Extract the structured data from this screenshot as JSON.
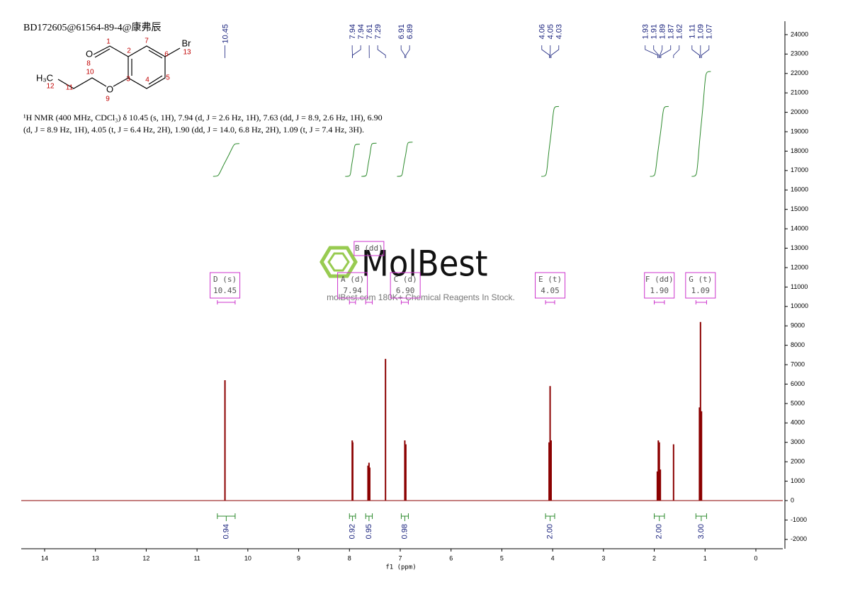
{
  "chart_data": {
    "type": "nmr",
    "header": "BD172605@61564-89-4@康弗辰",
    "description": [
      "¹H NMR (400 MHz, CDCl₃) δ 10.45 (s, 1H), 7.94 (d, J = 2.6 Hz, 1H), 7.63 (dd, J = 8.9, 2.6 Hz, 1H), 6.90",
      "(d, J = 8.9 Hz, 1H), 4.05 (t, J = 6.4 Hz, 2H), 1.90 (dd, J = 14.0, 6.8 Hz, 2H), 1.09 (t, J = 7.4 Hz, 3H)."
    ],
    "structure": {
      "atoms": [
        "O",
        "O",
        "Br",
        "H₃C"
      ],
      "numbers": [
        1,
        2,
        3,
        4,
        5,
        6,
        7,
        8,
        9,
        10,
        11,
        12,
        13
      ]
    },
    "watermark": {
      "title": "MolBest",
      "subtitle": "molBest.com 180K+ Chemical Reagents In Stock."
    },
    "x_label": "f1 (ppm)",
    "xlim": [
      14.46,
      -0.53
    ],
    "xticks": [
      14,
      13,
      12,
      11,
      10,
      9,
      8,
      7,
      6,
      5,
      4,
      3,
      2,
      1,
      0
    ],
    "ylim": [
      -2480,
      24690
    ],
    "yticks": [
      -2000,
      -1000,
      0,
      1000,
      2000,
      3000,
      4000,
      5000,
      6000,
      7000,
      8000,
      9000,
      10000,
      11000,
      12000,
      13000,
      14000,
      15000,
      16000,
      17000,
      18000,
      19000,
      20000,
      21000,
      22000,
      23000,
      24000
    ],
    "color": "#8b0000",
    "x": [
      10.45,
      7.945,
      7.935,
      7.635,
      7.615,
      7.6,
      7.29,
      6.91,
      6.89,
      4.07,
      4.05,
      4.03,
      1.94,
      1.92,
      1.9,
      1.88,
      1.62,
      1.11,
      1.09,
      1.07
    ],
    "values": [
      6200,
      3100,
      3000,
      1800,
      1950,
      1700,
      7300,
      3100,
      2900,
      3000,
      5900,
      3100,
      1500,
      3100,
      3000,
      1600,
      2900,
      4800,
      9200,
      4600
    ],
    "peak_labels": [
      10.45,
      7.94,
      7.94,
      7.61,
      7.29,
      6.91,
      6.89,
      4.06,
      4.05,
      4.03,
      1.93,
      1.91,
      1.89,
      1.87,
      1.62,
      1.11,
      1.09,
      1.07
    ],
    "integral_color": "#2e8b2e",
    "integral_ranges": [
      [
        10.6,
        10.25
      ],
      [
        8.0,
        7.88
      ],
      [
        7.68,
        7.55
      ],
      [
        6.98,
        6.84
      ],
      [
        4.14,
        3.96
      ],
      [
        2.0,
        1.8
      ],
      [
        1.18,
        0.97
      ]
    ],
    "integral_values": [
      0.94,
      0.92,
      0.95,
      0.98,
      {
        "value": 2,
        "label": "2.00"
      },
      {
        "value": 2,
        "label": "2.00"
      },
      {
        "value": 3,
        "label": "3.00"
      }
    ],
    "multiplet_color": "#cc33cc",
    "multiplets": [
      {
        "name": "D (s)",
        "shift": 10.45,
        "range": [
          10.6,
          10.25
        ]
      },
      {
        "name": "A (d)",
        "shift": 7.94,
        "range": [
          8.0,
          7.88
        ]
      },
      {
        "name": "B (dd)",
        "range": [
          7.68,
          7.55
        ]
      },
      {
        "name": "C (d)",
        "shift": {
          "value": 6.9,
          "label": "6.90"
        },
        "range": [
          6.98,
          6.84
        ]
      },
      {
        "name": "E (t)",
        "shift": 4.05,
        "range": [
          4.14,
          3.96
        ]
      },
      {
        "name": "F (dd)",
        "shift": {
          "value": 1.9,
          "label": "1.90"
        },
        "range": [
          2.0,
          1.8
        ]
      },
      {
        "name": "G (t)",
        "shift": 1.09,
        "range": [
          1.18,
          0.97
        ]
      }
    ]
  }
}
